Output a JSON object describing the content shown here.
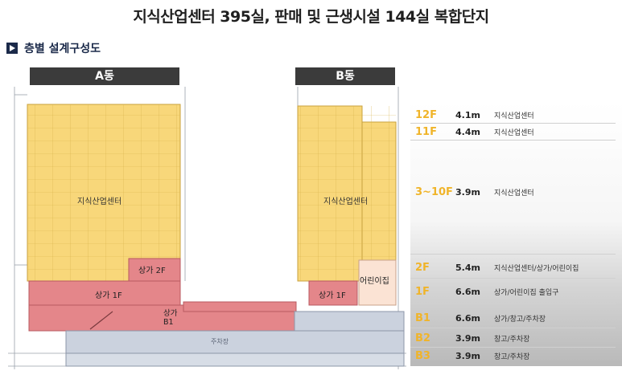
{
  "title": "지식산업센터 395실,  판매 및 근생시설 144실 복합단지",
  "subtitle": "층별 설계구성도",
  "buildings": {
    "a": "A동",
    "b": "B동"
  },
  "zones": {
    "office_a": "지식산업센터",
    "office_b": "지식산업센터",
    "shop_2f_a": "상가 2F",
    "shop_1f_a": "상가 1F",
    "shop_b1": "상가\nB1",
    "shop_1f_b": "상가 1F",
    "kindergarten": "어린이집",
    "parking_label": "주차장"
  },
  "floors": [
    {
      "floor": "12F",
      "height": "4.1m",
      "use": "지식산업센터"
    },
    {
      "floor": "11F",
      "height": "4.4m",
      "use": "지식산업센터"
    },
    {
      "floor": "3~10F",
      "height": "3.9m",
      "use": "지식산업센터"
    },
    {
      "floor": "2F",
      "height": "5.4m",
      "use": "지식산업센터/상가/어린이집"
    },
    {
      "floor": "1F",
      "height": "6.6m",
      "use": "상가/어린이집 출입구"
    },
    {
      "floor": "B1",
      "height": "6.6m",
      "use": "상가/창고/주차장"
    },
    {
      "floor": "B2",
      "height": "3.9m",
      "use": "창고/주차장"
    },
    {
      "floor": "B3",
      "height": "3.9m",
      "use": "창고/주차장"
    }
  ],
  "colors": {
    "office": "#f8d77a",
    "retail": "#e4868a",
    "parking": "#cbd2de",
    "label_yellow": "#f0b429",
    "tag_dark": "#3b3b3b"
  }
}
